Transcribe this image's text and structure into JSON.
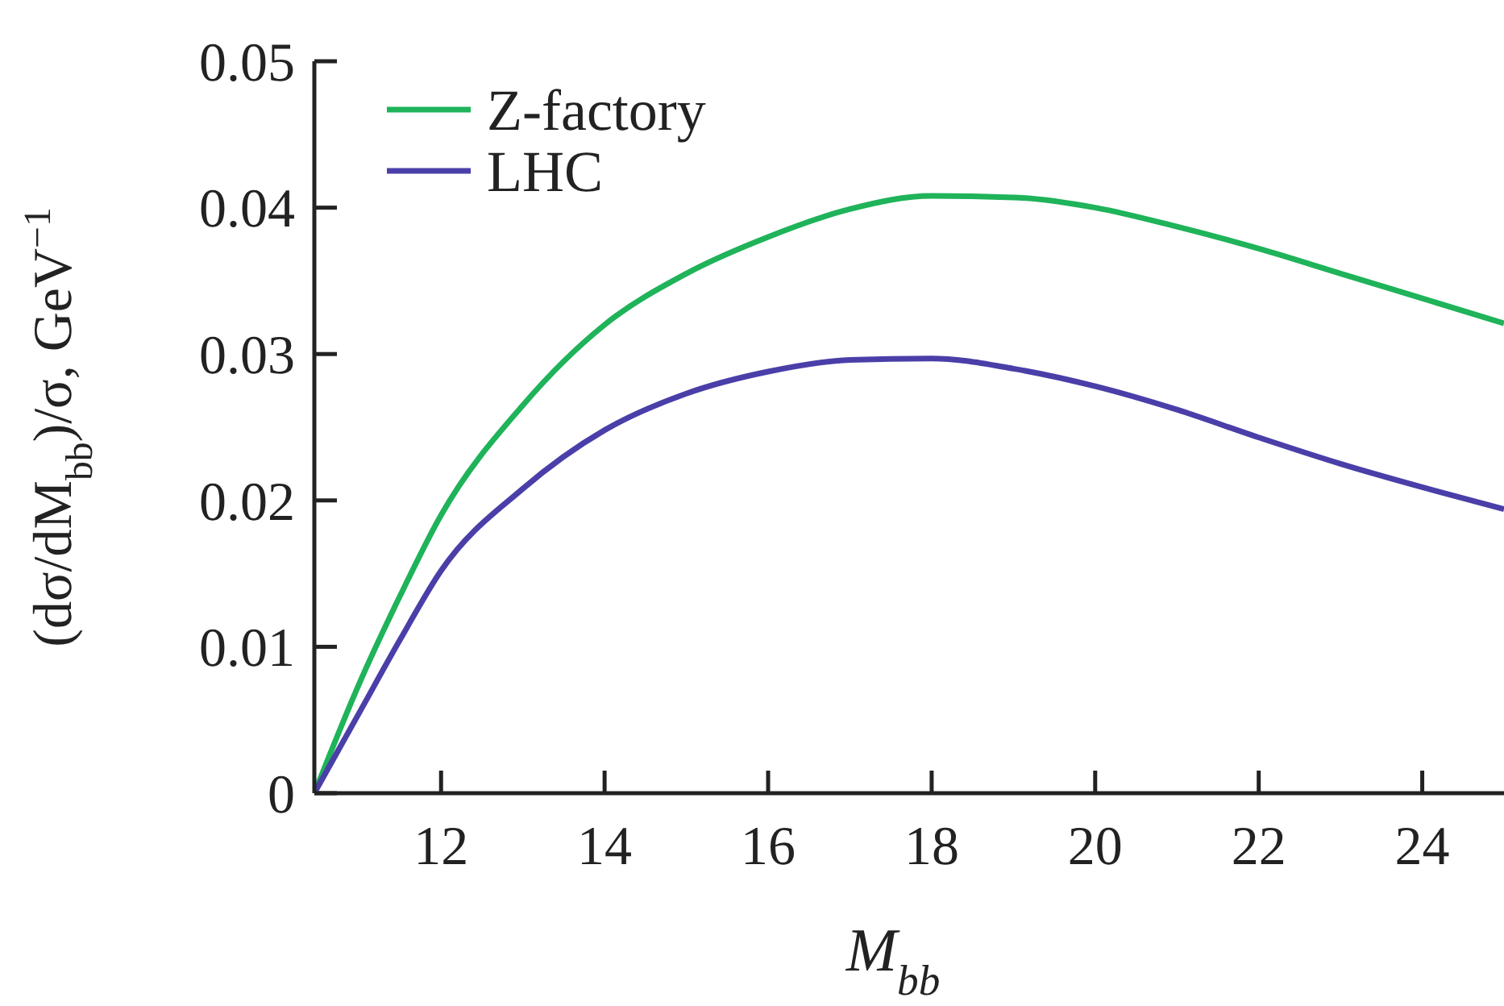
{
  "chart_data": {
    "type": "line",
    "xlabel": "M$_{bb}$",
    "ylabel": "(dσ/dM$_{bb}$)/σ, GeV$^{−1}$",
    "x": [
      10.45,
      11,
      11.5,
      12,
      13,
      14,
      15,
      16,
      17,
      18,
      19,
      20,
      21,
      22,
      23,
      24,
      25
    ],
    "series": [
      {
        "name": "Z-factory",
        "color": "#1fb35a",
        "values": [
          0,
          0.0075,
          0.0135,
          0.019,
          0.0265,
          0.032,
          0.0355,
          0.038,
          0.0399,
          0.0408,
          0.0407,
          0.04,
          0.0387,
          0.0372,
          0.0355,
          0.0338,
          0.0321
        ]
      },
      {
        "name": "LHC",
        "color": "#4a3fa8",
        "values": [
          0,
          0.0055,
          0.0105,
          0.0152,
          0.0208,
          0.0248,
          0.0273,
          0.0288,
          0.0296,
          0.0297,
          0.029,
          0.0278,
          0.0262,
          0.0243,
          0.0225,
          0.0209,
          0.0194
        ]
      }
    ],
    "xlim": [
      10.45,
      25
    ],
    "ylim": [
      0,
      0.05
    ],
    "xticks": [
      12,
      14,
      16,
      18,
      20,
      22,
      24
    ],
    "yticks": [
      0,
      0.01,
      0.02,
      0.03,
      0.04,
      0.05
    ],
    "grid": false,
    "legend": "top left",
    "line_style": "solid",
    "marker": "none"
  }
}
